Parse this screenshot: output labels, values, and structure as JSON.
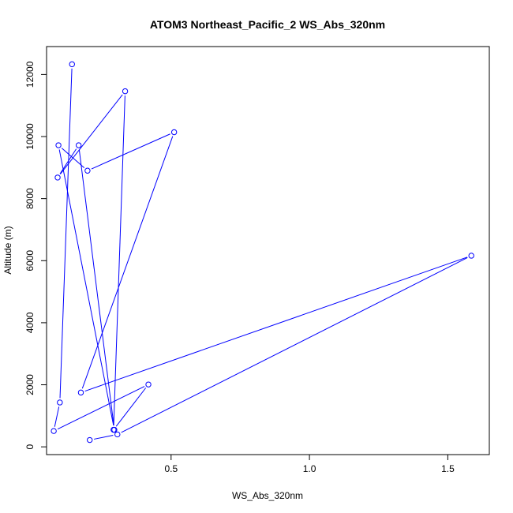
{
  "chart_data": {
    "type": "line",
    "title": "ATOM3 Northeast_Pacific_2 WS_Abs_320nm",
    "xlabel": "WS_Abs_320nm",
    "ylabel": "Altitude (m)",
    "xlim": [
      0.05,
      1.65
    ],
    "ylim": [
      -250,
      12900
    ],
    "x_ticks": [
      0.5,
      1.0,
      1.5
    ],
    "x_tick_labels": [
      "0.5",
      "1.0",
      "1.5"
    ],
    "y_ticks": [
      0,
      2000,
      4000,
      6000,
      8000,
      10000,
      12000
    ],
    "y_tick_labels": [
      "0",
      "2000",
      "4000",
      "6000",
      "8000",
      "10000",
      "12000"
    ],
    "grid": false,
    "color": "#0000ff",
    "series": [
      {
        "x": [
          0.142,
          0.098,
          0.076,
          0.418,
          0.292,
          0.334,
          0.09,
          0.166,
          0.295,
          0.093,
          0.198,
          0.511,
          0.174,
          1.585,
          0.306,
          0.206
        ],
        "y": [
          12330,
          1430,
          510,
          2010,
          550,
          11460,
          8680,
          9720,
          550,
          9720,
          8900,
          10140,
          1750,
          6160,
          400,
          220
        ]
      }
    ]
  }
}
